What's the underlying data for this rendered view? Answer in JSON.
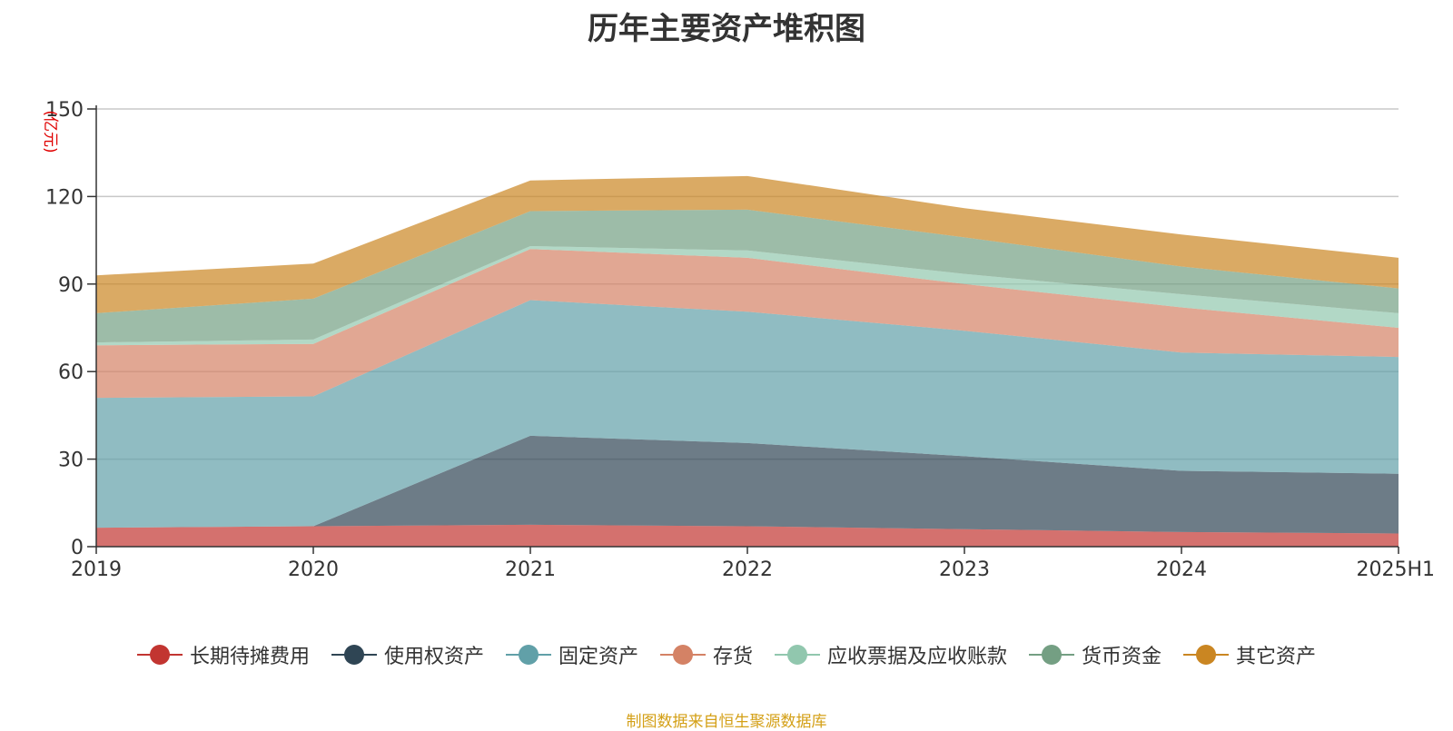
{
  "chart_data": {
    "type": "area",
    "stacked": true,
    "title": "历年主要资产堆积图",
    "unit": "(亿元)",
    "categories": [
      "2019",
      "2020",
      "2021",
      "2022",
      "2023",
      "2024",
      "2025H1"
    ],
    "y_ticks": [
      "0",
      "30",
      "60",
      "90",
      "120",
      "150"
    ],
    "ylim": [
      0,
      150
    ],
    "grid": true,
    "legend_position": "bottom",
    "series": [
      {
        "name": "长期待摊费用",
        "color": "#c23531",
        "values": [
          6.5,
          7.0,
          7.5,
          7.0,
          6.0,
          5.0,
          4.5
        ]
      },
      {
        "name": "使用权资产",
        "color": "#2f4554",
        "values": [
          0.0,
          0.0,
          30.5,
          28.5,
          25.0,
          21.0,
          20.5
        ]
      },
      {
        "name": "固定资产",
        "color": "#61a0a8",
        "values": [
          44.5,
          44.5,
          46.5,
          45.0,
          43.0,
          40.5,
          40.0
        ]
      },
      {
        "name": "存货",
        "color": "#d48265",
        "values": [
          18.0,
          18.0,
          17.5,
          18.5,
          16.0,
          15.5,
          10.0
        ]
      },
      {
        "name": "应收票据及应收账款",
        "color": "#91c7ae",
        "values": [
          1.0,
          1.5,
          1.0,
          2.5,
          3.5,
          4.5,
          5.0
        ]
      },
      {
        "name": "货币资金",
        "color": "#749f83",
        "values": [
          10.0,
          14.0,
          12.0,
          14.0,
          12.5,
          9.5,
          8.5
        ]
      },
      {
        "name": "其它资产",
        "color": "#ca8622",
        "values": [
          13.0,
          12.0,
          10.5,
          11.5,
          10.0,
          11.0,
          10.5
        ]
      }
    ]
  },
  "source": "制图数据来自恒生聚源数据库"
}
